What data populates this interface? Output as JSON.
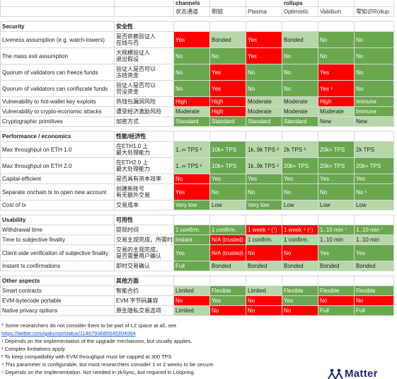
{
  "header": {
    "group_channels": "channels",
    "group_rollups": "rollups",
    "columns": [
      "状态通道",
      "侧链",
      "Plasma",
      "Optimistic",
      "Validium",
      "零知识Rollup"
    ]
  },
  "sections": [
    {
      "title_en": "Security",
      "title_cn": "安全性",
      "rows": [
        {
          "en": "Liveness assumption (e.g. watch-towers)",
          "cn": "是否依赖验证人\n在线与否",
          "tall": true,
          "cells": [
            {
              "t": "Yes",
              "c": "r"
            },
            {
              "t": "Bonded",
              "c": "lg"
            },
            {
              "t": "Yes",
              "c": "r"
            },
            {
              "t": "Bonded",
              "c": "lg"
            },
            {
              "t": "No",
              "c": "g"
            },
            {
              "t": "No",
              "c": "g"
            }
          ]
        },
        {
          "en": "The mass exit assumption",
          "cn": "大规模验证人\n退出假设",
          "tall": true,
          "cells": [
            {
              "t": "No",
              "c": "g"
            },
            {
              "t": "No",
              "c": "g"
            },
            {
              "t": "Yes",
              "c": "r"
            },
            {
              "t": "No",
              "c": "g"
            },
            {
              "t": "No",
              "c": "g"
            },
            {
              "t": "No",
              "c": "g"
            }
          ]
        },
        {
          "en": "Quorum of validators can freeze funds",
          "cn": "验证人是否可以\n冻结资金",
          "tall": true,
          "cells": [
            {
              "t": "No",
              "c": "g"
            },
            {
              "t": "Yes",
              "c": "r"
            },
            {
              "t": "No",
              "c": "g"
            },
            {
              "t": "No",
              "c": "g"
            },
            {
              "t": "Yes",
              "c": "r"
            },
            {
              "t": "No",
              "c": "g"
            }
          ]
        },
        {
          "en": "Quorum of validators can confiscate funds",
          "cn": "验证人是否可以\n罚没资金",
          "tall": true,
          "cells": [
            {
              "t": "No",
              "c": "g"
            },
            {
              "t": "Yes",
              "c": "r"
            },
            {
              "t": "No",
              "c": "g"
            },
            {
              "t": "No",
              "c": "g"
            },
            {
              "t": "Yes ¹",
              "c": "r"
            },
            {
              "t": "No",
              "c": "g"
            }
          ]
        },
        {
          "en": "Vulnerability to hot-wallet key exploits",
          "cn": "热钱包漏洞风险",
          "cells": [
            {
              "t": "High",
              "c": "r"
            },
            {
              "t": "High",
              "c": "r"
            },
            {
              "t": "Moderate",
              "c": "lg"
            },
            {
              "t": "Moderate",
              "c": "lg"
            },
            {
              "t": "High",
              "c": "r"
            },
            {
              "t": "Immune",
              "c": "g"
            }
          ]
        },
        {
          "en": "Vulnerability to crypto-economic attacks",
          "cn": "遭受经济激励风险",
          "cells": [
            {
              "t": "Moderate",
              "c": "lg"
            },
            {
              "t": "High",
              "c": "r"
            },
            {
              "t": "Moderate",
              "c": "lg"
            },
            {
              "t": "Moderate",
              "c": "lg"
            },
            {
              "t": "Moderate",
              "c": "lg"
            },
            {
              "t": "Immune",
              "c": "g"
            }
          ]
        },
        {
          "en": "Cryptographic primitives",
          "cn": "加密方式",
          "cells": [
            {
              "t": "Standard",
              "c": "g"
            },
            {
              "t": "Standard",
              "c": "g"
            },
            {
              "t": "Standard",
              "c": "g"
            },
            {
              "t": "Standard",
              "c": "g"
            },
            {
              "t": "New",
              "c": "lg"
            },
            {
              "t": "New",
              "c": "lg"
            }
          ]
        }
      ]
    },
    {
      "title_en": "Performance / economics",
      "title_cn": "性能/经济性",
      "rows": [
        {
          "en": "Max throughput on ETH 1.0",
          "cn": "在ETH1.0 上\n最大处理能力",
          "tall": true,
          "cells": [
            {
              "t": "1..∞ TPS ²",
              "c": "lg"
            },
            {
              "t": "10k+ TPS",
              "c": "g"
            },
            {
              "t": "1k..9k TPS ²",
              "c": "lg"
            },
            {
              "t": "2k TPS ³",
              "c": "lg"
            },
            {
              "t": "20k+ TPS",
              "c": "g"
            },
            {
              "t": "2k TPS",
              "c": "lg"
            }
          ]
        },
        {
          "en": "Max throughput on ETH 2.0",
          "cn": "在ETH2.0 上\n最大处理能力",
          "tall": true,
          "cells": [
            {
              "t": "1..∞ TPS ²",
              "c": "lg"
            },
            {
              "t": "10k+ TPS",
              "c": "g"
            },
            {
              "t": "1k..9k TPS ²",
              "c": "lg"
            },
            {
              "t": "20k+ TPS",
              "c": "g"
            },
            {
              "t": "20k+ TPS",
              "c": "g"
            },
            {
              "t": "20k+ TPS",
              "c": "g"
            }
          ]
        },
        {
          "en": "Capital-efficient",
          "cn": "是否具有资本效率",
          "cells": [
            {
              "t": "No",
              "c": "r"
            },
            {
              "t": "Yes",
              "c": "g"
            },
            {
              "t": "Yes",
              "c": "g"
            },
            {
              "t": "Yes",
              "c": "g"
            },
            {
              "t": "Yes",
              "c": "g"
            },
            {
              "t": "Yes",
              "c": "g"
            }
          ]
        },
        {
          "en": "Separate onchain tx to open new account",
          "cn": "创建新账号\n有无额外交易",
          "tall": true,
          "cells": [
            {
              "t": "Yes",
              "c": "r"
            },
            {
              "t": "No",
              "c": "g"
            },
            {
              "t": "No",
              "c": "g"
            },
            {
              "t": "No",
              "c": "g"
            },
            {
              "t": "No",
              "c": "g"
            },
            {
              "t": "No ⁵",
              "c": "g"
            }
          ]
        },
        {
          "en": "Cost of tx",
          "cn": "交易成本",
          "cells": [
            {
              "t": "Very low",
              "c": "g"
            },
            {
              "t": "Low",
              "c": "lg"
            },
            {
              "t": "Very low",
              "c": "g"
            },
            {
              "t": "Low",
              "c": "lg"
            },
            {
              "t": "Low",
              "c": "lg"
            },
            {
              "t": "Low",
              "c": "lg"
            }
          ]
        }
      ]
    },
    {
      "title_en": "Usability",
      "title_cn": "可用性",
      "rows": [
        {
          "en": "Withdrawal time",
          "cn": "提现时间",
          "cells": [
            {
              "t": "1 confirm.",
              "c": "g"
            },
            {
              "t": "1 confirm.",
              "c": "g"
            },
            {
              "t": "1 week ⁴ (⁷)",
              "c": "r"
            },
            {
              "t": "1 week ⁴ (⁷)",
              "c": "r"
            },
            {
              "t": "1..10 min ⁷",
              "c": "g"
            },
            {
              "t": "1..10 min ⁷",
              "c": "g"
            }
          ]
        },
        {
          "en": "Time to subjective finality",
          "cn": "交易主观完成，所需时间",
          "cells": [
            {
              "t": "Instant",
              "c": "g"
            },
            {
              "t": "N/A (trusted)",
              "c": "r"
            },
            {
              "t": "1 confirm.",
              "c": "lg"
            },
            {
              "t": "1 confirm.",
              "c": "lg"
            },
            {
              "t": "1..10 min",
              "c": "lg"
            },
            {
              "t": "1..10 min",
              "c": "lg"
            }
          ]
        },
        {
          "en": "Client-side verification of subjective finality",
          "cn": "交易的主观完成，\n是否需要用户确认",
          "tall": true,
          "cells": [
            {
              "t": "Yes",
              "c": "g"
            },
            {
              "t": "N/A (trusted)",
              "c": "r"
            },
            {
              "t": "No",
              "c": "r"
            },
            {
              "t": "No",
              "c": "r"
            },
            {
              "t": "Yes",
              "c": "g"
            },
            {
              "t": "Yes",
              "c": "g"
            }
          ]
        },
        {
          "en": "Instant tx confirmations",
          "cn": "即时交易确认",
          "cells": [
            {
              "t": "Full",
              "c": "g"
            },
            {
              "t": "Bonded",
              "c": "lg"
            },
            {
              "t": "Bonded",
              "c": "lg"
            },
            {
              "t": "Bonded",
              "c": "lg"
            },
            {
              "t": "Bonded",
              "c": "lg"
            },
            {
              "t": "Bonded",
              "c": "lg"
            }
          ]
        }
      ]
    },
    {
      "title_en": "Other aspects",
      "title_cn": "其他方面",
      "rows": [
        {
          "en": "Smart contracts",
          "cn": "智能合约",
          "cells": [
            {
              "t": "Limited",
              "c": "lg"
            },
            {
              "t": "Flexible",
              "c": "g"
            },
            {
              "t": "Limited",
              "c": "lg"
            },
            {
              "t": "Flexible",
              "c": "g"
            },
            {
              "t": "Flexible",
              "c": "g"
            },
            {
              "t": "Flexible",
              "c": "g"
            }
          ]
        },
        {
          "en": "EVM-bytecode portable",
          "cn": "EVM 字节码兼容",
          "cells": [
            {
              "t": "No",
              "c": "r"
            },
            {
              "t": "Yes",
              "c": "g"
            },
            {
              "t": "No",
              "c": "r"
            },
            {
              "t": "Yes",
              "c": "g"
            },
            {
              "t": "No",
              "c": "r"
            },
            {
              "t": "No",
              "c": "r"
            }
          ]
        },
        {
          "en": "Native privacy options",
          "cn": "原生隐私交易选项",
          "cells": [
            {
              "t": "Limited",
              "c": "lg"
            },
            {
              "t": "No",
              "c": "r"
            },
            {
              "t": "No",
              "c": "r"
            },
            {
              "t": "No",
              "c": "r"
            },
            {
              "t": "Full",
              "c": "g"
            },
            {
              "t": "Full",
              "c": "g"
            }
          ]
        }
      ]
    }
  ],
  "footnotes": {
    "note0": "⁰ Some researchers do not consider them to be part of L2 space at all, see",
    "link": "https://twitter.com/gakonst/status/1146793685545304064",
    "note1": "¹ Depends on the implementation of the upgrade mechanism, but usually applies.",
    "note2": "² Complex limitations apply.",
    "note3": "³ To keep compatibility with EVM throughput must be capped at 300 TPS",
    "note4": "⁴ This parameter is configurable, but most researchers consider 1 or 2 weeks to be secure.",
    "note5": "⁵ Depends on the implementation. Not needed in zkSync, but required in Loopring."
  },
  "logo": {
    "text": "Matter",
    "icon": "people-icon"
  },
  "colors": {
    "green": "#6aa84f",
    "light_green": "#b6d7a8",
    "red": "#ff0000"
  }
}
